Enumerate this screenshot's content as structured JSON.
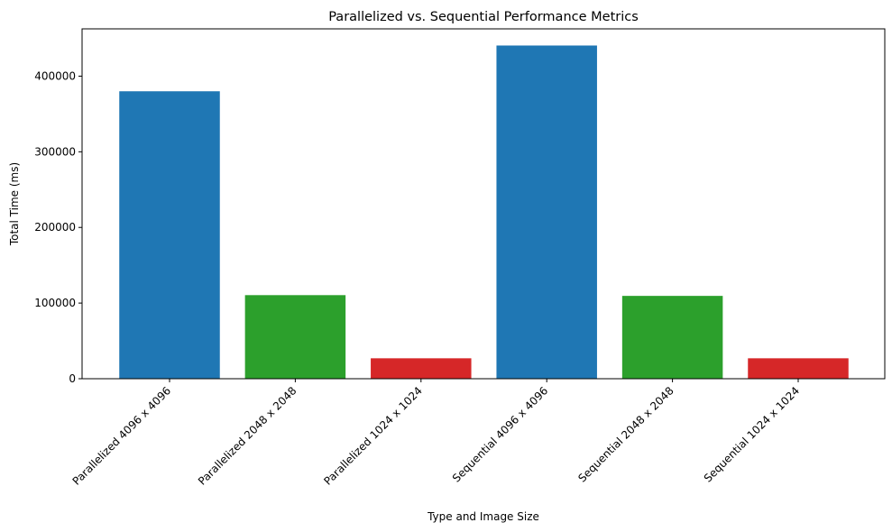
{
  "chart_data": {
    "type": "bar",
    "title": "Parallelized vs. Sequential Performance Metrics",
    "xlabel": "Type and Image Size",
    "ylabel": "Total Time (ms)",
    "categories": [
      "Parallelized 4096 x 4096",
      "Parallelized 2048 x 2048",
      "Parallelized 1024 x 1024",
      "Sequential 4096 x 4096",
      "Sequential 2048 x 2048",
      "Sequential 1024 x 1024"
    ],
    "values": [
      380000,
      110500,
      27000,
      440500,
      109500,
      27000
    ],
    "colors": [
      "#1f77b4",
      "#2ca02c",
      "#d62728",
      "#1f77b4",
      "#2ca02c",
      "#d62728"
    ],
    "yticks": [
      0,
      100000,
      200000,
      300000,
      400000
    ],
    "ytick_labels": [
      "0",
      "100000",
      "200000",
      "300000",
      "400000"
    ],
    "ylim": [
      0,
      462525
    ],
    "grid": false,
    "legend": "none"
  }
}
